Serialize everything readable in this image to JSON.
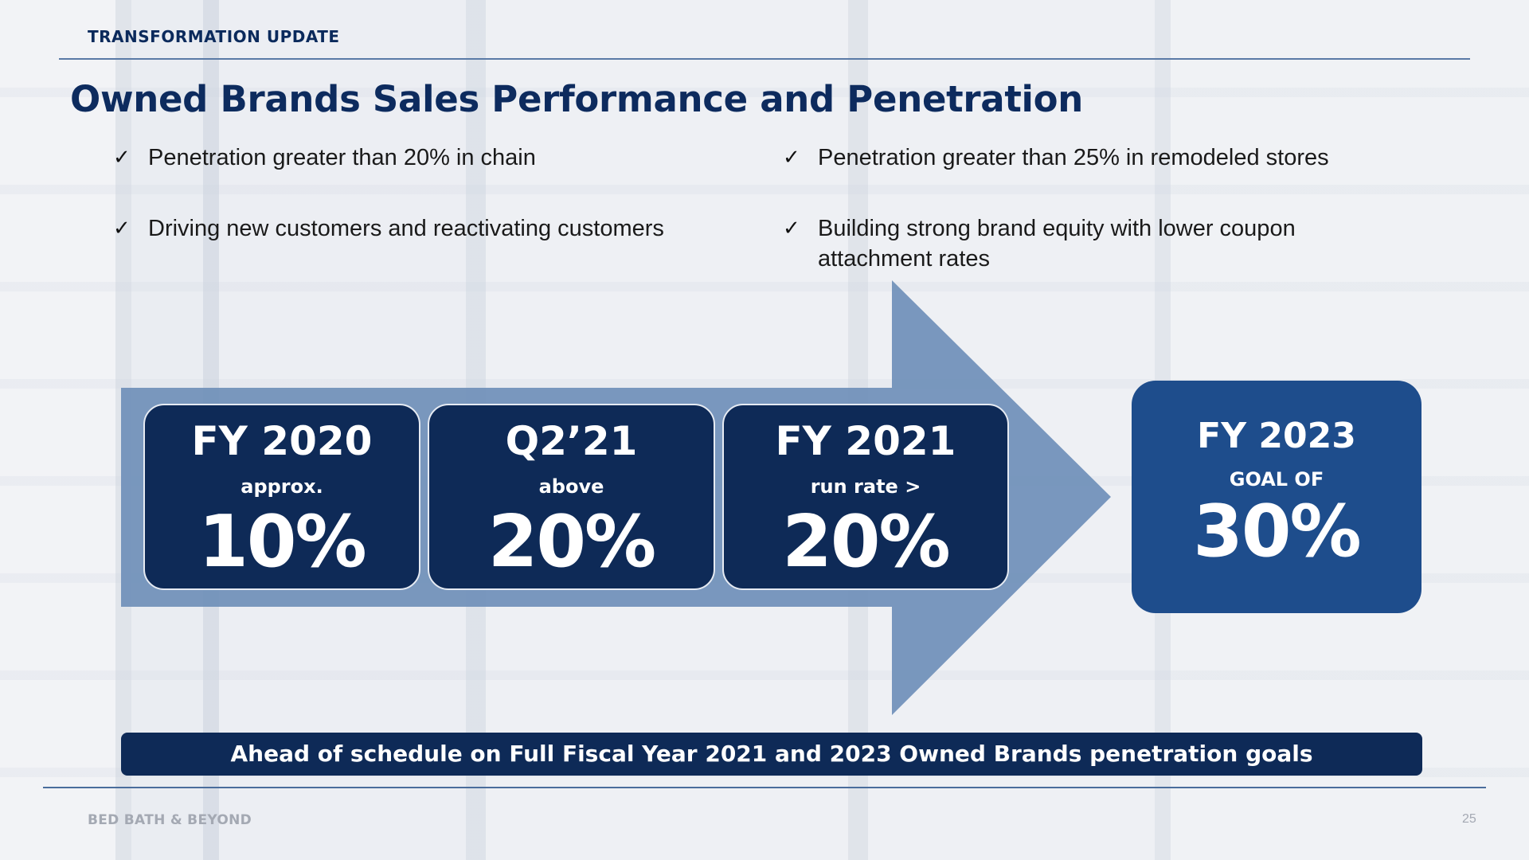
{
  "header": {
    "section_label": "TRANSFORMATION UPDATE",
    "title": "Owned Brands Sales Performance and Penetration"
  },
  "bullets": [
    {
      "check": "✓",
      "text": "Penetration greater than 20% in chain"
    },
    {
      "check": "✓",
      "text": "Driving new customers and reactivating customers"
    },
    {
      "check": "✓",
      "text": "Penetration greater than 25% in remodeled stores"
    },
    {
      "check": "✓",
      "text": "Building strong brand equity with lower coupon attachment rates"
    }
  ],
  "stats": [
    {
      "period": "FY 2020",
      "qualifier": "approx.",
      "value": "10%"
    },
    {
      "period": "Q2’21",
      "qualifier": "above",
      "value": "20%"
    },
    {
      "period": "FY 2021",
      "qualifier": "run rate >",
      "value": "20%"
    }
  ],
  "goal": {
    "period": "FY 2023",
    "qualifier": "GOAL OF",
    "value": "30%"
  },
  "banner": {
    "text": "Ahead of schedule on Full Fiscal Year 2021 and 2023 Owned Brands penetration goals"
  },
  "footer": {
    "brand": "BED BATH & BEYOND",
    "page_number": "25"
  },
  "colors": {
    "navy": "#0e2a57",
    "goal_blue": "#1e4d8c",
    "arrow_blue": "#6f8fb8",
    "title_navy": "#0d2b5e"
  }
}
